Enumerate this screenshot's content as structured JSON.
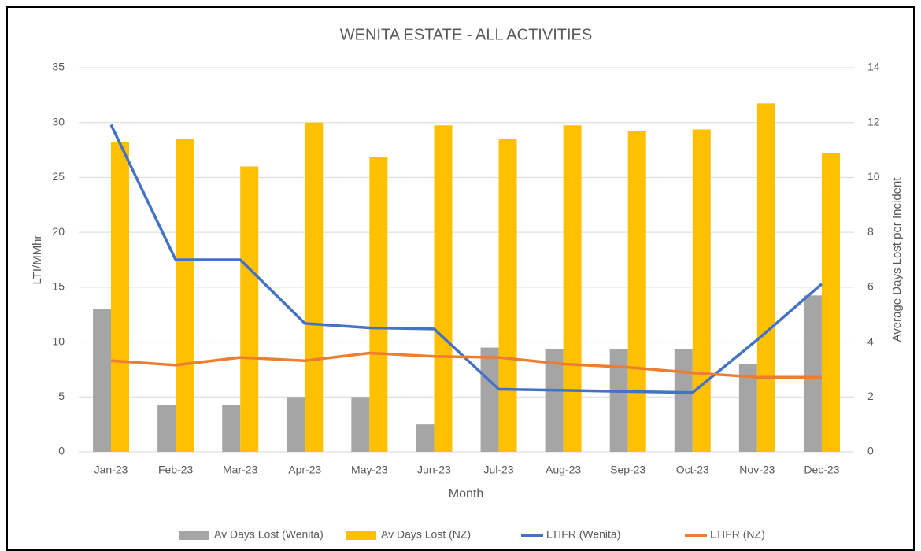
{
  "chart_data": {
    "type": "bar",
    "title": "WENITA ESTATE - ALL ACTIVITIES",
    "x_label": "Month",
    "y_label": "LTI/MMhr",
    "y2_label": "Average Days Lost per Incident",
    "categories": [
      "Jan-23",
      "Feb-23",
      "Mar-23",
      "Apr-23",
      "May-23",
      "Jun-23",
      "Jul-23",
      "Aug-23",
      "Sep-23",
      "Oct-23",
      "Nov-23",
      "Dec-23"
    ],
    "series": [
      {
        "name": "Av Days Lost (Wenita)",
        "type": "bar",
        "axis": "y2",
        "color": "#a5a5a5",
        "values": [
          5.2,
          1.7,
          1.7,
          2.0,
          2.0,
          1.0,
          3.8,
          3.75,
          3.75,
          3.75,
          3.2,
          5.7
        ]
      },
      {
        "name": "Av Days Lost (NZ)",
        "type": "bar",
        "axis": "y2",
        "color": "#ffc000",
        "values": [
          11.3,
          11.4,
          10.4,
          12.0,
          10.75,
          11.9,
          11.4,
          11.9,
          11.7,
          11.75,
          12.7,
          10.9
        ]
      },
      {
        "name": "LTIFR (Wenita)",
        "type": "line",
        "color": "#4472c4",
        "values": [
          29.8,
          17.5,
          17.5,
          11.7,
          11.3,
          11.2,
          5.7,
          5.6,
          5.5,
          5.4,
          10.2,
          15.3
        ]
      },
      {
        "name": "LTIFR (NZ)",
        "type": "line",
        "color": "#ed7d31",
        "values": [
          8.3,
          7.9,
          8.6,
          8.3,
          9.0,
          8.7,
          8.6,
          8.0,
          7.7,
          7.2,
          6.8,
          6.8
        ]
      }
    ],
    "ylim": [
      0,
      35
    ],
    "yticks": [
      0,
      5,
      10,
      15,
      20,
      25,
      30,
      35
    ],
    "y2lim": [
      0,
      14
    ],
    "y2ticks": [
      0,
      2,
      4,
      6,
      8,
      10,
      12,
      14
    ],
    "grid": true,
    "legend": "bottom"
  }
}
